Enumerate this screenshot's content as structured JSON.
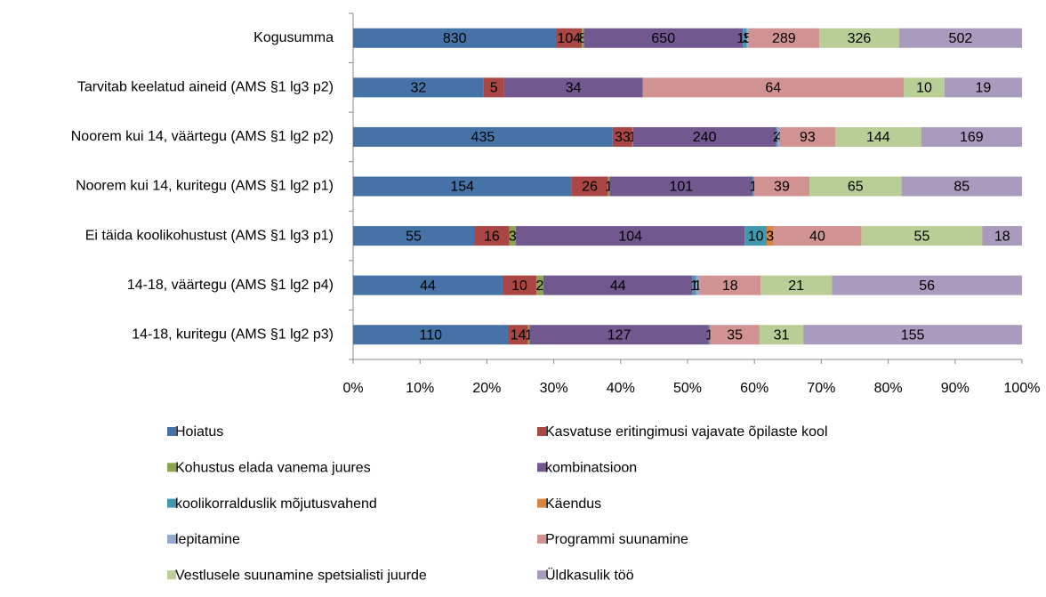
{
  "chart_data": {
    "type": "stacked_bar_100_horizontal",
    "categories": [
      "Kogusumma",
      "Tarvitab keelatud aineid (AMS §1 lg3 p2)",
      "Noorem kui 14, väärtegu (AMS §1 lg2 p2)",
      "Noorem kui 14, kuritegu (AMS §1 lg2 p1)",
      "Ei täida koolikohustust (AMS §1 lg3 p1)",
      "14-18, väärtegu  (AMS §1 lg2 p4)",
      "14-18, kuritegu  (AMS §1 lg2 p3)"
    ],
    "series": [
      {
        "name": "Hoiatus",
        "color": "#4572a7",
        "values": [
          830,
          32,
          435,
          154,
          55,
          44,
          110
        ]
      },
      {
        "name": "Kasvatuse eritingimusi vajavate õpilaste kool",
        "color": "#aa4643",
        "values": [
          104,
          5,
          33,
          26,
          16,
          10,
          14
        ]
      },
      {
        "name": "Kohustus elada vanema juures",
        "color": "#89a54e",
        "values": [
          8,
          null,
          1,
          1,
          3,
          2,
          1
        ]
      },
      {
        "name": "kombinatsioon",
        "color": "#71588f",
        "values": [
          650,
          34,
          240,
          101,
          104,
          44,
          127
        ]
      },
      {
        "name": "koolikorralduslik mõjutusvahend",
        "color": "#4198af",
        "values": [
          15,
          null,
          2,
          1,
          10,
          1,
          1
        ]
      },
      {
        "name": "Käendus",
        "color": "#db843d",
        "values": [
          3,
          null,
          null,
          null,
          3,
          null,
          null
        ]
      },
      {
        "name": "lepitamine",
        "color": "#93a9cf",
        "values": [
          5,
          null,
          4,
          null,
          null,
          1,
          null
        ]
      },
      {
        "name": "Programmi suunamine",
        "color": "#d19392",
        "values": [
          289,
          64,
          93,
          39,
          40,
          18,
          35
        ]
      },
      {
        "name": "Vestlusele suunamine spetsialisti juurde",
        "color": "#b9cd96",
        "values": [
          326,
          10,
          144,
          65,
          55,
          21,
          31
        ]
      },
      {
        "name": "Üldkasulik töö",
        "color": "#a99bbd",
        "values": [
          502,
          19,
          169,
          85,
          18,
          56,
          155
        ]
      }
    ],
    "xlim": [
      0,
      100
    ],
    "xticks": [
      {
        "value": 0,
        "label": "0%"
      },
      {
        "value": 10,
        "label": "10%"
      },
      {
        "value": 20,
        "label": "20%"
      },
      {
        "value": 30,
        "label": "30%"
      },
      {
        "value": 40,
        "label": "40%"
      },
      {
        "value": 50,
        "label": "50%"
      },
      {
        "value": 60,
        "label": "60%"
      },
      {
        "value": 70,
        "label": "70%"
      },
      {
        "value": 80,
        "label": "80%"
      },
      {
        "value": 90,
        "label": "90%"
      },
      {
        "value": 100,
        "label": "100%"
      }
    ],
    "legend": "bottom"
  }
}
